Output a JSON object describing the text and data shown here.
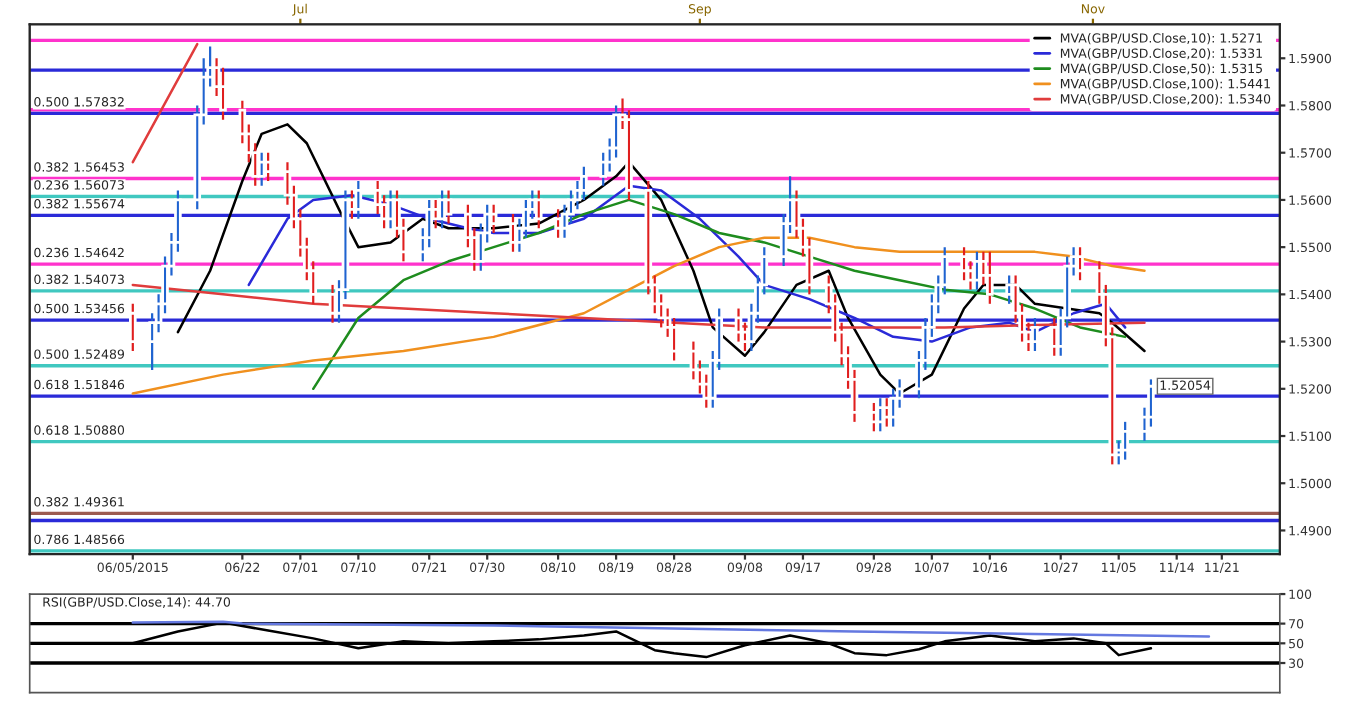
{
  "chart_data": [
    {
      "type": "candlestick",
      "x": [
        "2015-06-05",
        "2015-06-08",
        "2015-06-09",
        "2015-06-10",
        "2015-06-11",
        "2015-06-12",
        "2015-06-15",
        "2015-06-16",
        "2015-06-17",
        "2015-06-18",
        "2015-06-19",
        "2015-06-22",
        "2015-06-23",
        "2015-06-24",
        "2015-06-25",
        "2015-06-26",
        "2015-06-29",
        "2015-06-30",
        "2015-07-01",
        "2015-07-02",
        "2015-07-03",
        "2015-07-06",
        "2015-07-07",
        "2015-07-08",
        "2015-07-09",
        "2015-07-10",
        "2015-07-13",
        "2015-07-14",
        "2015-07-15",
        "2015-07-16",
        "2015-07-17",
        "2015-07-20",
        "2015-07-21",
        "2015-07-22",
        "2015-07-23",
        "2015-07-24",
        "2015-07-27",
        "2015-07-28",
        "2015-07-29",
        "2015-07-30",
        "2015-07-31",
        "2015-08-03",
        "2015-08-04",
        "2015-08-05",
        "2015-08-06",
        "2015-08-07",
        "2015-08-10",
        "2015-08-11",
        "2015-08-12",
        "2015-08-13",
        "2015-08-14",
        "2015-08-17",
        "2015-08-18",
        "2015-08-19",
        "2015-08-20",
        "2015-08-21",
        "2015-08-24",
        "2015-08-25",
        "2015-08-26",
        "2015-08-27",
        "2015-08-28",
        "2015-08-31",
        "2015-09-01",
        "2015-09-02",
        "2015-09-03",
        "2015-09-04",
        "2015-09-07",
        "2015-09-08",
        "2015-09-09",
        "2015-09-10",
        "2015-09-11",
        "2015-09-14",
        "2015-09-15",
        "2015-09-16",
        "2015-09-17",
        "2015-09-18",
        "2015-09-21",
        "2015-09-22",
        "2015-09-23",
        "2015-09-24",
        "2015-09-25",
        "2015-09-28",
        "2015-09-29",
        "2015-09-30",
        "2015-10-01",
        "2015-10-02",
        "2015-10-05",
        "2015-10-06",
        "2015-10-07",
        "2015-10-08",
        "2015-10-09",
        "2015-10-12",
        "2015-10-13",
        "2015-10-14",
        "2015-10-15",
        "2015-10-16",
        "2015-10-19",
        "2015-10-20",
        "2015-10-21",
        "2015-10-22",
        "2015-10-23",
        "2015-10-26",
        "2015-10-27",
        "2015-10-28",
        "2015-10-29",
        "2015-10-30",
        "2015-11-02",
        "2015-11-03",
        "2015-11-04",
        "2015-11-05",
        "2015-11-06",
        "2015-11-09",
        "2015-11-10"
      ],
      "ohlc": [
        [
          1.536,
          1.538,
          1.528,
          1.53
        ],
        [
          1.53,
          1.536,
          1.524,
          1.534
        ],
        [
          1.534,
          1.54,
          1.532,
          1.538
        ],
        [
          1.538,
          1.548,
          1.536,
          1.546
        ],
        [
          1.546,
          1.553,
          1.544,
          1.551
        ],
        [
          1.551,
          1.562,
          1.549,
          1.56
        ],
        [
          1.56,
          1.58,
          1.558,
          1.578
        ],
        [
          1.578,
          1.59,
          1.576,
          1.586
        ],
        [
          1.586,
          1.5925,
          1.584,
          1.588
        ],
        [
          1.588,
          1.59,
          1.582,
          1.584
        ],
        [
          1.584,
          1.588,
          1.577,
          1.579
        ],
        [
          1.579,
          1.581,
          1.572,
          1.574
        ],
        [
          1.574,
          1.576,
          1.568,
          1.57
        ],
        [
          1.57,
          1.572,
          1.563,
          1.565
        ],
        [
          1.565,
          1.57,
          1.563,
          1.568
        ],
        [
          1.568,
          1.57,
          1.564,
          1.566
        ],
        [
          1.566,
          1.568,
          1.559,
          1.561
        ],
        [
          1.561,
          1.563,
          1.554,
          1.556
        ],
        [
          1.556,
          1.558,
          1.548,
          1.55
        ],
        [
          1.55,
          1.552,
          1.543,
          1.545
        ],
        [
          1.545,
          1.547,
          1.538,
          1.54
        ],
        [
          1.54,
          1.542,
          1.534,
          1.536
        ],
        [
          1.536,
          1.543,
          1.534,
          1.541
        ],
        [
          1.541,
          1.562,
          1.539,
          1.56
        ],
        [
          1.56,
          1.562,
          1.556,
          1.558
        ],
        [
          1.558,
          1.564,
          1.556,
          1.562
        ],
        [
          1.562,
          1.564,
          1.557,
          1.559
        ],
        [
          1.559,
          1.561,
          1.554,
          1.556
        ],
        [
          1.556,
          1.562,
          1.554,
          1.56
        ],
        [
          1.56,
          1.562,
          1.552,
          1.554
        ],
        [
          1.554,
          1.556,
          1.547,
          1.549
        ],
        [
          1.549,
          1.554,
          1.547,
          1.552
        ],
        [
          1.552,
          1.56,
          1.55,
          1.558
        ],
        [
          1.558,
          1.56,
          1.554,
          1.556
        ],
        [
          1.556,
          1.562,
          1.554,
          1.56
        ],
        [
          1.56,
          1.562,
          1.555,
          1.557
        ],
        [
          1.557,
          1.559,
          1.55,
          1.552
        ],
        [
          1.552,
          1.554,
          1.545,
          1.547
        ],
        [
          1.547,
          1.555,
          1.545,
          1.553
        ],
        [
          1.553,
          1.559,
          1.551,
          1.557
        ],
        [
          1.557,
          1.559,
          1.553,
          1.555
        ],
        [
          1.555,
          1.557,
          1.549,
          1.551
        ],
        [
          1.551,
          1.556,
          1.549,
          1.554
        ],
        [
          1.554,
          1.56,
          1.552,
          1.558
        ],
        [
          1.558,
          1.562,
          1.556,
          1.56
        ],
        [
          1.56,
          1.562,
          1.554,
          1.556
        ],
        [
          1.556,
          1.558,
          1.552,
          1.554
        ],
        [
          1.554,
          1.559,
          1.552,
          1.557
        ],
        [
          1.557,
          1.562,
          1.555,
          1.56
        ],
        [
          1.56,
          1.564,
          1.558,
          1.562
        ],
        [
          1.562,
          1.567,
          1.56,
          1.565
        ],
        [
          1.565,
          1.57,
          1.563,
          1.568
        ],
        [
          1.568,
          1.573,
          1.566,
          1.571
        ],
        [
          1.571,
          1.58,
          1.569,
          1.578
        ],
        [
          1.578,
          1.5815,
          1.575,
          1.577
        ],
        [
          1.577,
          1.579,
          1.56,
          1.562
        ],
        [
          1.562,
          1.564,
          1.54,
          1.542
        ],
        [
          1.542,
          1.544,
          1.536,
          1.538
        ],
        [
          1.538,
          1.54,
          1.533,
          1.535
        ],
        [
          1.535,
          1.537,
          1.531,
          1.533
        ],
        [
          1.533,
          1.535,
          1.526,
          1.528
        ],
        [
          1.528,
          1.53,
          1.522,
          1.524
        ],
        [
          1.524,
          1.526,
          1.519,
          1.521
        ],
        [
          1.521,
          1.523,
          1.516,
          1.518
        ],
        [
          1.518,
          1.528,
          1.516,
          1.526
        ],
        [
          1.526,
          1.537,
          1.524,
          1.535
        ],
        [
          1.535,
          1.537,
          1.53,
          1.532
        ],
        [
          1.532,
          1.534,
          1.528,
          1.53
        ],
        [
          1.53,
          1.538,
          1.528,
          1.536
        ],
        [
          1.536,
          1.544,
          1.534,
          1.542
        ],
        [
          1.542,
          1.55,
          1.54,
          1.548
        ],
        [
          1.548,
          1.557,
          1.546,
          1.555
        ],
        [
          1.555,
          1.565,
          1.553,
          1.56
        ],
        [
          1.56,
          1.562,
          1.552,
          1.554
        ],
        [
          1.554,
          1.556,
          1.548,
          1.55
        ],
        [
          1.55,
          1.552,
          1.54,
          1.542
        ],
        [
          1.542,
          1.544,
          1.536,
          1.538
        ],
        [
          1.538,
          1.54,
          1.53,
          1.532
        ],
        [
          1.532,
          1.534,
          1.525,
          1.527
        ],
        [
          1.527,
          1.529,
          1.52,
          1.522
        ],
        [
          1.522,
          1.524,
          1.513,
          1.515
        ],
        [
          1.515,
          1.517,
          1.511,
          1.513
        ],
        [
          1.513,
          1.518,
          1.511,
          1.516
        ],
        [
          1.516,
          1.518,
          1.512,
          1.514
        ],
        [
          1.514,
          1.52,
          1.512,
          1.518
        ],
        [
          1.518,
          1.522,
          1.516,
          1.52
        ],
        [
          1.52,
          1.528,
          1.518,
          1.526
        ],
        [
          1.526,
          1.535,
          1.524,
          1.533
        ],
        [
          1.533,
          1.54,
          1.531,
          1.538
        ],
        [
          1.538,
          1.544,
          1.536,
          1.542
        ],
        [
          1.542,
          1.55,
          1.54,
          1.548
        ],
        [
          1.548,
          1.55,
          1.543,
          1.545
        ],
        [
          1.545,
          1.547,
          1.541,
          1.543
        ],
        [
          1.543,
          1.549,
          1.541,
          1.547
        ],
        [
          1.547,
          1.549,
          1.542,
          1.544
        ],
        [
          1.544,
          1.549,
          1.538,
          1.54
        ],
        [
          1.54,
          1.544,
          1.538,
          1.542
        ],
        [
          1.542,
          1.544,
          1.534,
          1.536
        ],
        [
          1.536,
          1.538,
          1.53,
          1.532
        ],
        [
          1.532,
          1.534,
          1.528,
          1.53
        ],
        [
          1.53,
          1.535,
          1.528,
          1.533
        ],
        [
          1.533,
          1.535,
          1.527,
          1.529
        ],
        [
          1.529,
          1.537,
          1.527,
          1.535
        ],
        [
          1.535,
          1.548,
          1.533,
          1.546
        ],
        [
          1.546,
          1.55,
          1.544,
          1.548
        ],
        [
          1.548,
          1.55,
          1.543,
          1.545
        ],
        [
          1.545,
          1.547,
          1.538,
          1.54
        ],
        [
          1.54,
          1.542,
          1.529,
          1.531
        ],
        [
          1.531,
          1.533,
          1.504,
          1.506
        ],
        [
          1.506,
          1.509,
          1.504,
          1.507
        ],
        [
          1.507,
          1.513,
          1.505,
          1.511
        ],
        [
          1.511,
          1.516,
          1.509,
          1.514
        ],
        [
          1.514,
          1.522,
          1.512,
          1.52054
        ]
      ],
      "colors": [
        "#e01e1e",
        "#1f63d0",
        "#1f63d0",
        "#1f63d0",
        "#1f63d0",
        "#1f63d0",
        "#1f63d0",
        "#1f63d0",
        "#1f63d0",
        "#e01e1e",
        "#e01e1e",
        "#e01e1e",
        "#e01e1e",
        "#e01e1e",
        "#1f63d0",
        "#e01e1e",
        "#e01e1e",
        "#e01e1e",
        "#e01e1e",
        "#e01e1e",
        "#e01e1e",
        "#e01e1e",
        "#1f63d0",
        "#1f63d0",
        "#e01e1e",
        "#1f63d0",
        "#e01e1e",
        "#e01e1e",
        "#1f63d0",
        "#e01e1e",
        "#e01e1e",
        "#1f63d0",
        "#1f63d0",
        "#e01e1e",
        "#1f63d0",
        "#e01e1e",
        "#e01e1e",
        "#e01e1e",
        "#1f63d0",
        "#1f63d0",
        "#e01e1e",
        "#e01e1e",
        "#1f63d0",
        "#1f63d0",
        "#1f63d0",
        "#e01e1e",
        "#e01e1e",
        "#1f63d0",
        "#1f63d0",
        "#1f63d0",
        "#1f63d0",
        "#1f63d0",
        "#1f63d0",
        "#1f63d0",
        "#e01e1e",
        "#e01e1e",
        "#e01e1e",
        "#e01e1e",
        "#e01e1e",
        "#e01e1e",
        "#e01e1e",
        "#e01e1e",
        "#e01e1e",
        "#e01e1e",
        "#1f63d0",
        "#1f63d0",
        "#e01e1e",
        "#e01e1e",
        "#1f63d0",
        "#1f63d0",
        "#1f63d0",
        "#1f63d0",
        "#1f63d0",
        "#e01e1e",
        "#e01e1e",
        "#e01e1e",
        "#e01e1e",
        "#e01e1e",
        "#e01e1e",
        "#e01e1e",
        "#e01e1e",
        "#e01e1e",
        "#1f63d0",
        "#e01e1e",
        "#1f63d0",
        "#1f63d0",
        "#1f63d0",
        "#1f63d0",
        "#1f63d0",
        "#1f63d0",
        "#1f63d0",
        "#e01e1e",
        "#e01e1e",
        "#1f63d0",
        "#e01e1e",
        "#e01e1e",
        "#1f63d0",
        "#e01e1e",
        "#e01e1e",
        "#e01e1e",
        "#1f63d0",
        "#e01e1e",
        "#1f63d0",
        "#1f63d0",
        "#1f63d0",
        "#e01e1e",
        "#e01e1e",
        "#e01e1e",
        "#e01e1e",
        "#1f63d0",
        "#1f63d0",
        "#1f63d0",
        "#1f63d0"
      ],
      "series": [
        {
          "type": "line",
          "name": "MVA(GBP/USD.Close,10): 1.5271",
          "color": "#000000",
          "x": [
            "2015-06-12",
            "2015-06-17",
            "2015-06-22",
            "2015-06-25",
            "2015-06-29",
            "2015-07-02",
            "2015-07-07",
            "2015-07-10",
            "2015-07-15",
            "2015-07-20",
            "2015-07-24",
            "2015-07-31",
            "2015-08-07",
            "2015-08-14",
            "2015-08-19",
            "2015-08-21",
            "2015-08-26",
            "2015-08-31",
            "2015-09-03",
            "2015-09-08",
            "2015-09-11",
            "2015-09-16",
            "2015-09-21",
            "2015-09-24",
            "2015-09-29",
            "2015-10-02",
            "2015-10-07",
            "2015-10-12",
            "2015-10-15",
            "2015-10-20",
            "2015-10-23",
            "2015-10-28",
            "2015-11-02",
            "2015-11-04",
            "2015-11-09"
          ],
          "values": [
            1.532,
            1.545,
            1.564,
            1.574,
            1.576,
            1.572,
            1.558,
            1.55,
            1.551,
            1.556,
            1.554,
            1.554,
            1.555,
            1.56,
            1.565,
            1.568,
            1.56,
            1.545,
            1.533,
            1.527,
            1.532,
            1.542,
            1.545,
            1.535,
            1.523,
            1.519,
            1.523,
            1.537,
            1.542,
            1.542,
            1.538,
            1.537,
            1.536,
            1.534,
            1.528
          ]
        },
        {
          "type": "line",
          "name": "MVA(GBP/USD.Close,20): 1.5331",
          "color": "#2a2ad8",
          "x": [
            "2015-06-23",
            "2015-06-29",
            "2015-07-03",
            "2015-07-09",
            "2015-07-15",
            "2015-07-21",
            "2015-07-27",
            "2015-07-31",
            "2015-08-07",
            "2015-08-14",
            "2015-08-21",
            "2015-08-26",
            "2015-09-01",
            "2015-09-07",
            "2015-09-11",
            "2015-09-18",
            "2015-09-25",
            "2015-10-01",
            "2015-10-07",
            "2015-10-13",
            "2015-10-19",
            "2015-10-23",
            "2015-10-29",
            "2015-11-03",
            "2015-11-06"
          ],
          "values": [
            1.542,
            1.556,
            1.56,
            1.561,
            1.559,
            1.556,
            1.554,
            1.553,
            1.553,
            1.556,
            1.563,
            1.562,
            1.556,
            1.548,
            1.542,
            1.539,
            1.535,
            1.531,
            1.53,
            1.533,
            1.534,
            1.532,
            1.536,
            1.538,
            1.533
          ]
        },
        {
          "type": "line",
          "name": "MVA(GBP/USD.Close,50): 1.5315",
          "color": "#1e8c1e",
          "x": [
            "2015-07-03",
            "2015-07-10",
            "2015-07-17",
            "2015-07-24",
            "2015-07-31",
            "2015-08-07",
            "2015-08-14",
            "2015-08-21",
            "2015-08-28",
            "2015-09-04",
            "2015-09-11",
            "2015-09-18",
            "2015-09-25",
            "2015-10-02",
            "2015-10-09",
            "2015-10-16",
            "2015-10-23",
            "2015-10-30",
            "2015-11-06"
          ],
          "values": [
            1.52,
            1.535,
            1.543,
            1.547,
            1.55,
            1.553,
            1.557,
            1.56,
            1.557,
            1.553,
            1.551,
            1.548,
            1.545,
            1.543,
            1.541,
            1.54,
            1.537,
            1.533,
            1.531
          ]
        },
        {
          "type": "line",
          "name": "MVA(GBP/USD.Close,100): 1.5441",
          "color": "#f0901e",
          "x": [
            "2015-06-05",
            "2015-06-19",
            "2015-07-03",
            "2015-07-17",
            "2015-07-31",
            "2015-08-14",
            "2015-08-21",
            "2015-08-28",
            "2015-09-04",
            "2015-09-11",
            "2015-09-18",
            "2015-09-25",
            "2015-10-02",
            "2015-10-09",
            "2015-10-16",
            "2015-10-23",
            "2015-10-29",
            "2015-11-04",
            "2015-11-09"
          ],
          "values": [
            1.519,
            1.523,
            1.526,
            1.528,
            1.531,
            1.536,
            1.541,
            1.546,
            1.55,
            1.552,
            1.552,
            1.55,
            1.549,
            1.549,
            1.549,
            1.549,
            1.548,
            1.546,
            1.545
          ]
        },
        {
          "type": "line",
          "name": "MVA(GBP/USD.Close,200): 1.5340",
          "color": "#e03c3c",
          "x": [
            "2015-06-05",
            "2015-06-19",
            "2015-07-03",
            "2015-07-17",
            "2015-07-31",
            "2015-08-14",
            "2015-08-28",
            "2015-09-11",
            "2015-09-25",
            "2015-10-09",
            "2015-10-23",
            "2015-11-09"
          ],
          "values": [
            1.542,
            1.54,
            1.538,
            1.537,
            1.536,
            1.535,
            1.534,
            1.533,
            1.533,
            1.533,
            1.5335,
            1.534
          ]
        },
        {
          "type": "line",
          "color": "#e03c3c",
          "x": [
            "2015-06-05",
            "2015-06-15"
          ],
          "values": [
            1.568,
            1.593
          ]
        }
      ],
      "ref_lines": [
        {
          "axis": "y",
          "value": 1.5938,
          "label": null,
          "color": "#ff33cc"
        },
        {
          "axis": "y",
          "value": 1.5875,
          "label": null,
          "color": "#2a2ad8"
        },
        {
          "axis": "y",
          "value": 1.5791,
          "label": null,
          "color": "#ff33cc"
        },
        {
          "axis": "y",
          "value": 1.57832,
          "label": "0.500 1.57832",
          "color": "#2a2ad8"
        },
        {
          "axis": "y",
          "value": 1.56453,
          "label": "0.382 1.56453",
          "color": "#ff33cc"
        },
        {
          "axis": "y",
          "value": 1.56073,
          "label": "0.236 1.56073",
          "color": "#40c8c0"
        },
        {
          "axis": "y",
          "value": 1.55674,
          "label": "0.382 1.55674",
          "color": "#2a2ad8"
        },
        {
          "axis": "y",
          "value": 1.54642,
          "label": "0.236 1.54642",
          "color": "#ff33cc"
        },
        {
          "axis": "y",
          "value": 1.54073,
          "label": "0.382 1.54073",
          "color": "#40c8c0"
        },
        {
          "axis": "y",
          "value": 1.53456,
          "label": "0.500 1.53456",
          "color": "#2a2ad8"
        },
        {
          "axis": "y",
          "value": 1.52489,
          "label": "0.500 1.52489",
          "color": "#40c8c0"
        },
        {
          "axis": "y",
          "value": 1.51846,
          "label": "0.618 1.51846",
          "color": "#2a2ad8"
        },
        {
          "axis": "y",
          "value": 1.5088,
          "label": "0.618 1.50880",
          "color": "#40c8c0"
        },
        {
          "axis": "y",
          "value": 1.49361,
          "label": "0.382 1.49361",
          "color": "#9c5a50"
        },
        {
          "axis": "y",
          "value": 1.4921,
          "label": null,
          "color": "#2a2ad8"
        },
        {
          "axis": "y",
          "value": 1.48566,
          "label": "0.786 1.48566",
          "color": "#40c8c0"
        }
      ],
      "annotations": [
        {
          "text": "1.52054",
          "x": "2015-11-10",
          "y": 1.52054
        }
      ],
      "xlim": [
        "2015-05-20",
        "2015-11-30"
      ],
      "xticks": [
        {
          "value": "2015-06-05",
          "label": "06/05/2015"
        },
        {
          "value": "2015-06-22",
          "label": "06/22"
        },
        {
          "value": "2015-07-01",
          "label": "07/01"
        },
        {
          "value": "2015-07-10",
          "label": "07/10"
        },
        {
          "value": "2015-07-21",
          "label": "07/21"
        },
        {
          "value": "2015-07-30",
          "label": "07/30"
        },
        {
          "value": "2015-08-10",
          "label": "08/10"
        },
        {
          "value": "2015-08-19",
          "label": "08/19"
        },
        {
          "value": "2015-08-28",
          "label": "08/28"
        },
        {
          "value": "2015-09-08",
          "label": "09/08"
        },
        {
          "value": "2015-09-17",
          "label": "09/17"
        },
        {
          "value": "2015-09-28",
          "label": "09/28"
        },
        {
          "value": "2015-10-07",
          "label": "10/07"
        },
        {
          "value": "2015-10-16",
          "label": "10/16"
        },
        {
          "value": "2015-10-27",
          "label": "10/27"
        },
        {
          "value": "2015-11-05",
          "label": "11/05"
        },
        {
          "value": "2015-11-14",
          "label": "11/14"
        },
        {
          "value": "2015-11-21",
          "label": "11/21"
        }
      ],
      "x2lim": [
        "2015-05-20",
        "2015-11-30"
      ],
      "x2ticks": [
        {
          "value": "2015-07-01",
          "label": "Jul"
        },
        {
          "value": "2015-09-01",
          "label": "Sep"
        },
        {
          "value": "2015-11-01",
          "label": "Nov"
        }
      ],
      "ylim": [
        1.485,
        1.5972
      ],
      "yticks": [
        {
          "value": 1.49,
          "label": "1.4900"
        },
        {
          "value": 1.5,
          "label": "1.5000"
        },
        {
          "value": 1.51,
          "label": "1.5100"
        },
        {
          "value": 1.52,
          "label": "1.5200"
        },
        {
          "value": 1.53,
          "label": "1.5300"
        },
        {
          "value": 1.54,
          "label": "1.5400"
        },
        {
          "value": 1.55,
          "label": "1.5500"
        },
        {
          "value": 1.56,
          "label": "1.5600"
        },
        {
          "value": 1.57,
          "label": "1.5700"
        },
        {
          "value": 1.58,
          "label": "1.5800"
        },
        {
          "value": 1.59,
          "label": "1.5900"
        }
      ],
      "legend": "top right"
    },
    {
      "type": "line",
      "title": "RSI(GBP/USD.Close,14): 44.70",
      "series": [
        {
          "color": "#000000",
          "x": [
            "2015-06-05",
            "2015-06-12",
            "2015-06-19",
            "2015-06-26",
            "2015-07-03",
            "2015-07-10",
            "2015-07-17",
            "2015-07-24",
            "2015-07-31",
            "2015-08-07",
            "2015-08-14",
            "2015-08-19",
            "2015-08-25",
            "2015-08-28",
            "2015-09-02",
            "2015-09-08",
            "2015-09-15",
            "2015-09-21",
            "2015-09-25",
            "2015-09-30",
            "2015-10-05",
            "2015-10-09",
            "2015-10-16",
            "2015-10-23",
            "2015-10-29",
            "2015-11-03",
            "2015-11-05",
            "2015-11-10"
          ],
          "values": [
            50,
            62,
            71,
            63,
            55,
            45,
            52,
            50,
            52,
            54,
            58,
            62,
            43,
            40,
            36,
            48,
            58,
            50,
            40,
            38,
            44,
            52,
            58,
            52,
            55,
            50,
            38,
            45
          ]
        },
        {
          "color": "#6478e0",
          "x": [
            "2015-06-05",
            "2015-06-19",
            "2015-06-22",
            "2015-07-31",
            "2015-09-25",
            "2015-11-19"
          ],
          "values": [
            71,
            72,
            70,
            68,
            62,
            57
          ]
        }
      ],
      "ref_lines": [
        {
          "axis": "y",
          "value": 70,
          "color": "#000000"
        },
        {
          "axis": "y",
          "value": 50,
          "color": "#000000"
        },
        {
          "axis": "y",
          "value": 30,
          "color": "#000000"
        }
      ],
      "xlim": [
        "2015-05-20",
        "2015-11-30"
      ],
      "ylim": [
        0,
        100
      ],
      "yticks": [
        30,
        50,
        70,
        100
      ],
      "tick_labels": "y"
    }
  ]
}
